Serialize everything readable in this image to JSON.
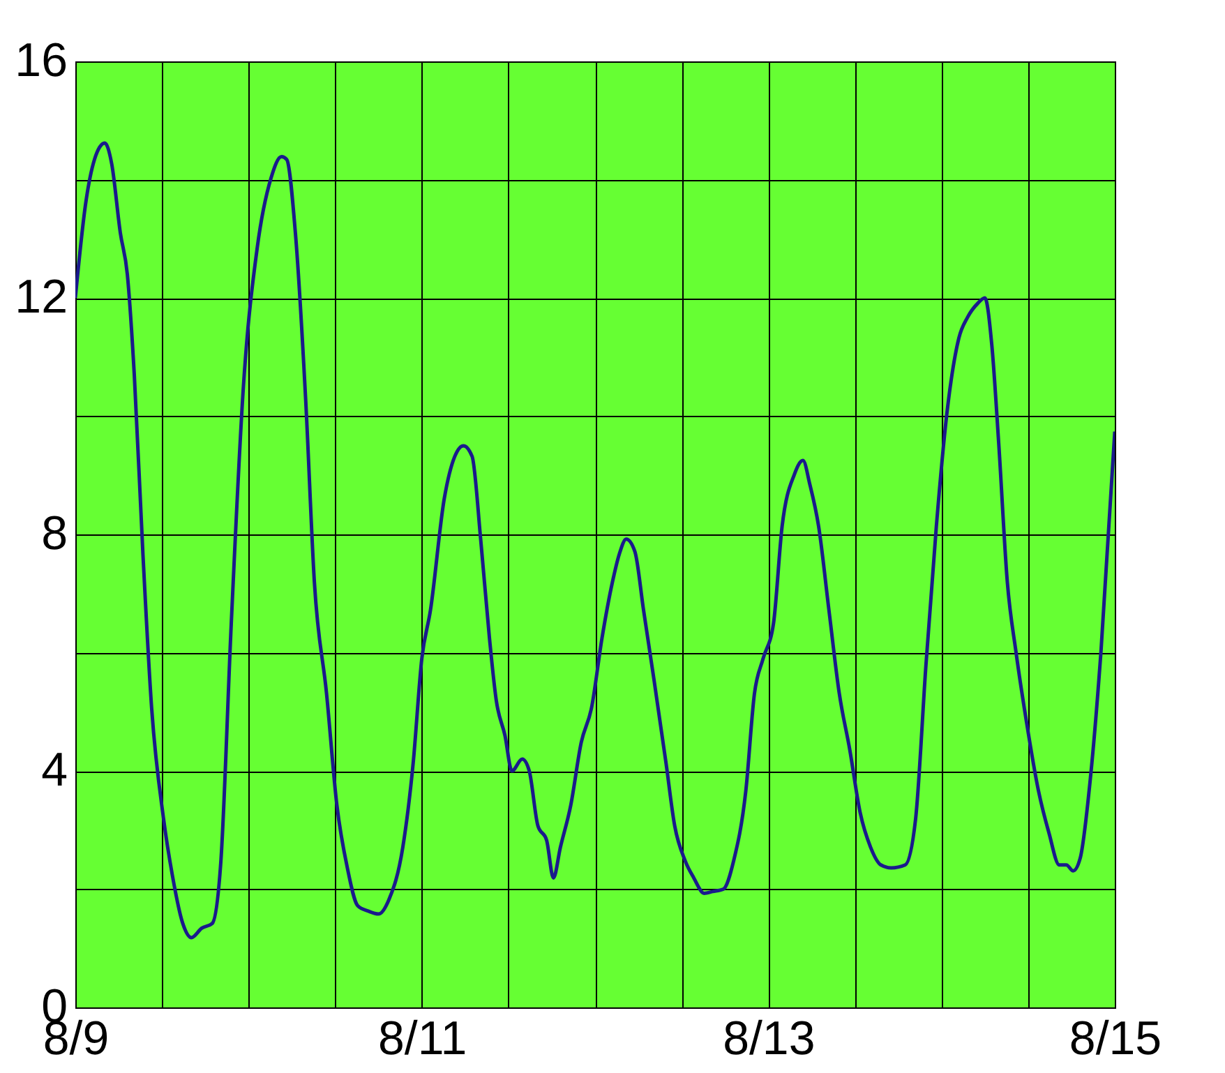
{
  "chart_data": {
    "type": "line",
    "x": [
      "--08-09T00:00",
      "--08-09T01:26",
      "--08-09T03:22",
      "--08-09T04:05",
      "--08-09T05:02",
      "--08-09T06:14",
      "--08-09T07:12",
      "--08-09T08:10",
      "--08-09T09:22",
      "--08-09T10:34",
      "--08-09T12:14",
      "--08-09T13:26",
      "--08-09T14:53",
      "--08-09T16:05",
      "--08-09T17:31",
      "--08-09T18:58",
      "--08-09T20:10",
      "--08-09T21:36",
      "--08-09T23:17",
      "--08-10T01:12",
      "--08-10T03:07",
      "--08-10T04:34",
      "--08-10T05:17",
      "--08-10T06:29",
      "--08-10T07:55",
      "--08-10T09:07",
      "--08-10T10:48",
      "--08-10T12:14",
      "--08-10T13:41",
      "--08-10T15:07",
      "--08-10T16:34",
      "--08-10T18:00",
      "--08-10T19:26",
      "--08-10T21:22",
      "--08-10T22:48",
      "--08-11T00:00",
      "--08-11T01:12",
      "--08-11T03:07",
      "--08-11T04:34",
      "--08-11T05:46",
      "--08-11T06:58",
      "--08-11T08:10",
      "--08-11T09:22",
      "--08-11T10:19",
      "--08-11T11:31",
      "--08-11T12:29",
      "--08-11T13:55",
      "--08-11T14:53",
      "--08-11T16:05",
      "--08-11T17:17",
      "--08-11T18:14",
      "--08-11T19:12",
      "--08-11T20:38",
      "--08-11T22:05",
      "--08-11T23:31",
      "--08-12T00:58",
      "--08-12T02:24",
      "--08-12T03:22",
      "--08-12T04:19",
      "--08-12T05:31",
      "--08-12T06:43",
      "--08-12T08:10",
      "--08-12T09:50",
      "--08-12T11:02",
      "--08-12T12:29",
      "--08-12T13:41",
      "--08-12T15:07",
      "--08-12T16:19",
      "--08-12T17:46",
      "--08-12T19:12",
      "--08-12T20:53",
      "--08-12T22:05",
      "--08-12T23:17",
      "--08-13T00:43",
      "--08-13T01:55",
      "--08-13T03:36",
      "--08-13T04:48",
      "--08-13T05:46",
      "--08-13T06:58",
      "--08-13T08:24",
      "--08-13T09:50",
      "--08-13T11:17",
      "--08-13T12:43",
      "--08-13T14:10",
      "--08-13T15:36",
      "--08-13T17:02",
      "--08-13T18:58",
      "--08-13T20:24",
      "--08-13T21:50",
      "--08-13T23:17",
      "--08-14T00:43",
      "--08-14T02:24",
      "--08-14T03:36",
      "--08-14T05:02",
      "--08-14T06:00",
      "--08-14T06:58",
      "--08-14T07:55",
      "--08-14T09:07",
      "--08-14T10:19",
      "--08-14T11:46",
      "--08-14T13:26",
      "--08-14T14:53",
      "--08-14T16:19",
      "--08-14T17:17",
      "--08-14T18:14",
      "--08-14T19:12",
      "--08-14T20:38",
      "--08-14T22:05",
      "--08-15T00:00"
    ],
    "series": [
      {
        "color": "#1a1a8c",
        "values": [
          12.0,
          13.6,
          14.55,
          14.62,
          14.27,
          13.1,
          12.4,
          10.7,
          7.66,
          5.07,
          3.18,
          2.24,
          1.42,
          1.18,
          1.34,
          1.42,
          2.48,
          6.49,
          10.5,
          12.85,
          14.03,
          14.39,
          14.34,
          13.1,
          10.26,
          7.19,
          5.31,
          3.42,
          2.36,
          1.72,
          1.63,
          1.58,
          1.82,
          2.71,
          4.13,
          5.9,
          6.72,
          8.61,
          9.32,
          9.5,
          9.32,
          7.9,
          6.25,
          5.19,
          4.6,
          4.0,
          4.2,
          4.0,
          3.07,
          2.83,
          2.19,
          2.71,
          3.42,
          4.48,
          5.07,
          6.25,
          7.19,
          7.67,
          7.92,
          7.71,
          6.72,
          5.54,
          4.13,
          3.07,
          2.48,
          2.19,
          1.93,
          1.96,
          2.0,
          2.48,
          3.66,
          5.31,
          5.9,
          6.49,
          8.14,
          9.01,
          9.25,
          8.84,
          8.14,
          6.72,
          5.31,
          4.36,
          3.3,
          2.71,
          2.41,
          2.36,
          2.41,
          3.18,
          5.78,
          8.14,
          10.02,
          11.32,
          11.67,
          11.91,
          12.0,
          11.2,
          9.55,
          7.19,
          6.01,
          4.83,
          3.66,
          2.95,
          2.41,
          2.41,
          2.31,
          2.52,
          3.89,
          6.01,
          9.74
        ]
      }
    ],
    "xlim": [
      "--08-09",
      "--08-15"
    ],
    "xticks": [
      {
        "value": "--08-09",
        "label": "8/9"
      },
      {
        "value": "--08-09T12:00",
        "label": null
      },
      {
        "value": "--08-10",
        "label": null
      },
      {
        "value": "--08-10T12:00",
        "label": null
      },
      {
        "value": "--08-11",
        "label": "8/11"
      },
      {
        "value": "--08-11T12:00",
        "label": null
      },
      {
        "value": "--08-12",
        "label": null
      },
      {
        "value": "--08-12T12:00",
        "label": null
      },
      {
        "value": "--08-13",
        "label": "8/13"
      },
      {
        "value": "--08-13T12:00",
        "label": null
      },
      {
        "value": "--08-14",
        "label": null
      },
      {
        "value": "--08-14T12:00",
        "label": null
      },
      {
        "value": "--08-15",
        "label": "8/15"
      }
    ],
    "ylim": [
      0,
      16
    ],
    "yticks": [
      0,
      {
        "value": 2,
        "label": null
      },
      4,
      {
        "value": 6,
        "label": null
      },
      8,
      {
        "value": 10,
        "label": null
      },
      12,
      {
        "value": 14,
        "label": null
      },
      16
    ],
    "grid": true,
    "marker": "none",
    "line_style": "solid"
  }
}
